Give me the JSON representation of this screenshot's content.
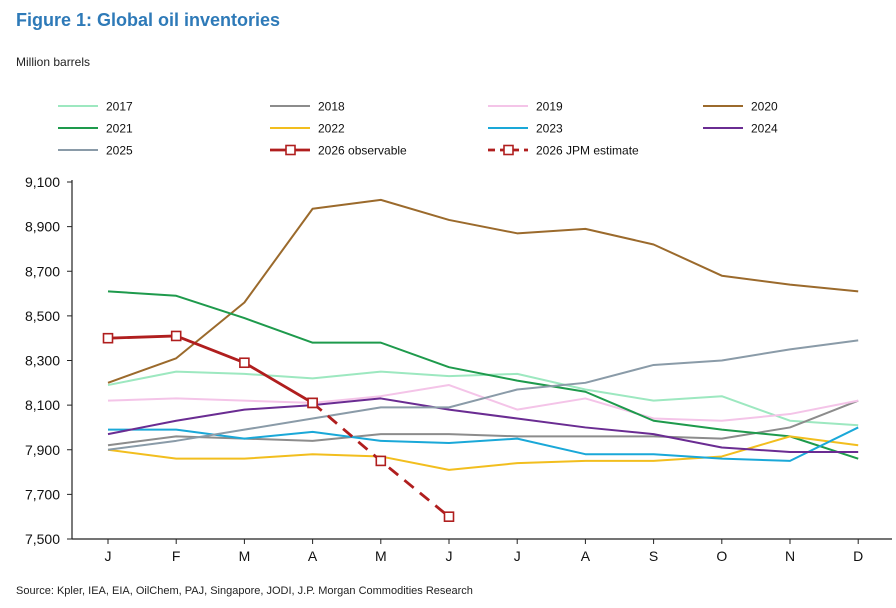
{
  "title": "Figure 1: Global oil inventories",
  "unit_label": "Million barrels",
  "source": "Source: Kpler, IEA, EIA, OilChem, PAJ, Singapore, JODI, J.P. Morgan Commodities Research",
  "chart_data": {
    "type": "line",
    "categories": [
      "J",
      "F",
      "M",
      "A",
      "M",
      "J",
      "J",
      "A",
      "S",
      "O",
      "N",
      "D"
    ],
    "ylim": [
      7500,
      9100
    ],
    "yticks": [
      9100,
      8900,
      8700,
      8500,
      8300,
      8100,
      7900,
      7700,
      7500
    ],
    "ytick_labels": [
      "9,100",
      "8,900",
      "8,700",
      "8,500",
      "8,300",
      "8,100",
      "7,900",
      "7,700",
      "7,500"
    ],
    "grid": false,
    "legend_position": "top",
    "series": [
      {
        "name": "2017",
        "color": "#9de8c0",
        "style": "solid",
        "values": [
          8190,
          8250,
          8240,
          8220,
          8250,
          8230,
          8240,
          8170,
          8120,
          8140,
          8030,
          8010
        ]
      },
      {
        "name": "2018",
        "color": "#8c8c8c",
        "style": "solid",
        "values": [
          7920,
          7960,
          7950,
          7940,
          7970,
          7970,
          7960,
          7960,
          7960,
          7950,
          8000,
          8120
        ]
      },
      {
        "name": "2019",
        "color": "#f4c4e8",
        "style": "solid",
        "values": [
          8120,
          8130,
          8120,
          8110,
          8140,
          8190,
          8080,
          8130,
          8040,
          8030,
          8060,
          8120
        ]
      },
      {
        "name": "2020",
        "color": "#9b6a2c",
        "style": "solid",
        "values": [
          8200,
          8310,
          8560,
          8980,
          9020,
          8930,
          8870,
          8890,
          8820,
          8680,
          8640,
          8610
        ]
      },
      {
        "name": "2021",
        "color": "#1e9a4c",
        "style": "solid",
        "values": [
          8610,
          8590,
          8490,
          8380,
          8380,
          8270,
          8210,
          8160,
          8030,
          7990,
          7960,
          7860
        ]
      },
      {
        "name": "2022",
        "color": "#f2be1e",
        "style": "solid",
        "values": [
          7900,
          7860,
          7860,
          7880,
          7870,
          7810,
          7840,
          7850,
          7850,
          7870,
          7960,
          7920
        ]
      },
      {
        "name": "2023",
        "color": "#1aa8d8",
        "style": "solid",
        "values": [
          7990,
          7990,
          7950,
          7980,
          7940,
          7930,
          7950,
          7880,
          7880,
          7860,
          7850,
          8000
        ]
      },
      {
        "name": "2024",
        "color": "#6a2c92",
        "style": "solid",
        "values": [
          7970,
          8030,
          8080,
          8100,
          8130,
          8080,
          8040,
          8000,
          7970,
          7910,
          7890,
          7890
        ]
      },
      {
        "name": "2025",
        "color": "#8a9ba8",
        "style": "solid",
        "values": [
          7900,
          7940,
          7990,
          8040,
          8090,
          8090,
          8170,
          8200,
          8280,
          8300,
          8350,
          8390
        ]
      },
      {
        "name": "2026 observable",
        "color": "#b01e1e",
        "style": "solid",
        "markers": true,
        "values": [
          8400,
          8410,
          8290,
          8110,
          null,
          null,
          null,
          null,
          null,
          null,
          null,
          null
        ]
      },
      {
        "name": "2026 JPM estimate",
        "color": "#b01e1e",
        "style": "dashed",
        "markers": true,
        "values": [
          null,
          null,
          null,
          8110,
          7850,
          7600,
          null,
          null,
          null,
          null,
          null,
          null
        ]
      }
    ]
  }
}
